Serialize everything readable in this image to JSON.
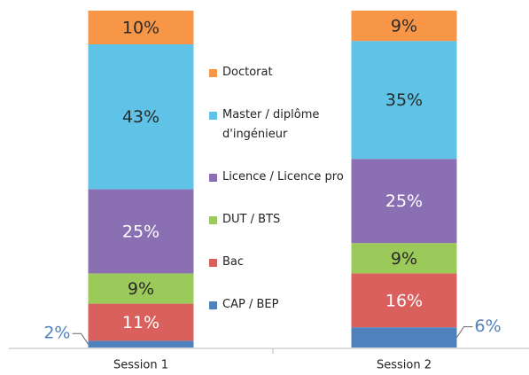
{
  "chart_data": {
    "type": "stacked-bar",
    "categories": [
      "Session 1",
      "Session 2"
    ],
    "ylim": [
      0,
      100
    ],
    "series": [
      {
        "name": "CAP / BEP",
        "color": "#4f81bd",
        "values": [
          2,
          6
        ],
        "value_labels": [
          "2%",
          "6%"
        ]
      },
      {
        "name": "Bac",
        "color": "#d9605c",
        "values": [
          11,
          16
        ],
        "value_labels": [
          "11%",
          "16%"
        ]
      },
      {
        "name": "DUT / BTS",
        "color": "#9bc95a",
        "values": [
          9,
          9
        ],
        "value_labels": [
          "9%",
          "9%"
        ]
      },
      {
        "name": "Licence / Licence pro",
        "color": "#8b6fb3",
        "values": [
          25,
          25
        ],
        "value_labels": [
          "25%",
          "25%"
        ]
      },
      {
        "name": "Master / diplôme d'ingénieur",
        "color": "#5ec3e6",
        "values": [
          43,
          35
        ],
        "value_labels": [
          "43%",
          "35%"
        ]
      },
      {
        "name": "Doctorat",
        "color": "#f79646",
        "values": [
          10,
          9
        ],
        "value_labels": [
          "10%",
          "9%"
        ]
      }
    ]
  }
}
